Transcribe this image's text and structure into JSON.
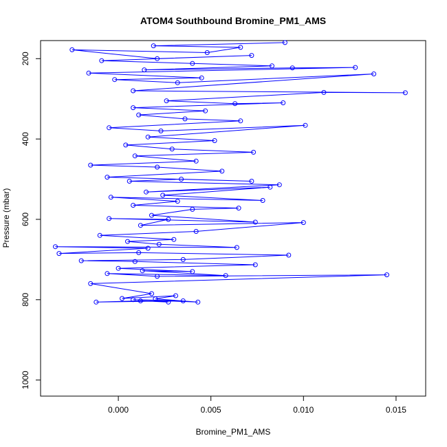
{
  "chart_data": {
    "type": "line",
    "title": "ATOM4 Southbound Bromine_PM1_AMS",
    "xlabel": "Bromine_PM1_AMS",
    "ylabel": "Pressure (mbar)",
    "xlim": [
      -0.0042,
      0.0166
    ],
    "ylim": [
      1040,
      155
    ],
    "y_axis_reversed": true,
    "grid": false,
    "x_ticks": [
      {
        "value": 0.0,
        "label": "0.000"
      },
      {
        "value": 0.005,
        "label": "0.005"
      },
      {
        "value": 0.01,
        "label": "0.010"
      },
      {
        "value": 0.015,
        "label": "0.015"
      }
    ],
    "y_ticks": [
      {
        "value": 200,
        "label": "200"
      },
      {
        "value": 400,
        "label": "400"
      },
      {
        "value": 600,
        "label": "600"
      },
      {
        "value": 800,
        "label": "800"
      },
      {
        "value": 1000,
        "label": "1000"
      }
    ],
    "series_color": "#0000ff",
    "marker": "open-circle",
    "series": [
      {
        "values": [
          [
            0.0027,
            806
          ],
          [
            0.0012,
            803
          ],
          [
            -0.0012,
            806
          ],
          [
            0.0035,
            803
          ],
          [
            0.0008,
            800
          ],
          [
            0.0043,
            806
          ],
          [
            0.002,
            798
          ],
          [
            0.0031,
            790
          ],
          [
            0.0002,
            797
          ],
          [
            0.0018,
            785
          ],
          [
            -0.0015,
            760
          ],
          [
            0.0145,
            738
          ],
          [
            0.0021,
            742
          ],
          [
            -0.0006,
            735
          ],
          [
            0.0058,
            740
          ],
          [
            0.0013,
            728
          ],
          [
            0.004,
            730
          ],
          [
            0.0,
            722
          ],
          [
            0.0074,
            713
          ],
          [
            0.0009,
            705
          ],
          [
            -0.002,
            703
          ],
          [
            0.0035,
            700
          ],
          [
            0.0092,
            689
          ],
          [
            0.0011,
            683
          ],
          [
            -0.0032,
            685
          ],
          [
            0.0016,
            672
          ],
          [
            -0.0034,
            668
          ],
          [
            0.0064,
            670
          ],
          [
            0.0022,
            662
          ],
          [
            0.0005,
            655
          ],
          [
            0.003,
            650
          ],
          [
            -0.001,
            640
          ],
          [
            0.0042,
            630
          ],
          [
            0.01,
            608
          ],
          [
            0.0012,
            615
          ],
          [
            0.0027,
            600
          ],
          [
            -0.0005,
            598
          ],
          [
            0.0074,
            607
          ],
          [
            0.0018,
            590
          ],
          [
            0.004,
            575
          ],
          [
            0.0065,
            572
          ],
          [
            0.0008,
            565
          ],
          [
            0.0032,
            555
          ],
          [
            -0.0004,
            545
          ],
          [
            0.0078,
            553
          ],
          [
            0.0024,
            540
          ],
          [
            0.0082,
            520
          ],
          [
            0.0015,
            532
          ],
          [
            0.0087,
            514
          ],
          [
            0.0006,
            505
          ],
          [
            0.0034,
            500
          ],
          [
            0.0072,
            505
          ],
          [
            -0.0006,
            495
          ],
          [
            0.0056,
            480
          ],
          [
            0.0021,
            470
          ],
          [
            -0.0015,
            465
          ],
          [
            0.0042,
            455
          ],
          [
            0.0009,
            442
          ],
          [
            0.0073,
            433
          ],
          [
            0.0029,
            425
          ],
          [
            0.0004,
            415
          ],
          [
            0.0052,
            404
          ],
          [
            0.0016,
            395
          ],
          [
            0.0101,
            366
          ],
          [
            0.0023,
            380
          ],
          [
            -0.0005,
            372
          ],
          [
            0.0066,
            355
          ],
          [
            0.0036,
            350
          ],
          [
            0.0011,
            340
          ],
          [
            0.0047,
            330
          ],
          [
            0.0008,
            322
          ],
          [
            0.0089,
            310
          ],
          [
            0.0063,
            312
          ],
          [
            0.0026,
            305
          ],
          [
            0.0111,
            284
          ],
          [
            0.0155,
            285
          ],
          [
            0.0008,
            280
          ],
          [
            0.0138,
            238
          ],
          [
            0.0032,
            260
          ],
          [
            -0.0002,
            252
          ],
          [
            0.0045,
            248
          ],
          [
            -0.0016,
            236
          ],
          [
            0.0128,
            222
          ],
          [
            0.0094,
            223
          ],
          [
            0.0014,
            228
          ],
          [
            0.0083,
            218
          ],
          [
            0.004,
            212
          ],
          [
            -0.0009,
            205
          ],
          [
            0.0072,
            192
          ],
          [
            0.0021,
            200
          ],
          [
            -0.0025,
            178
          ],
          [
            0.0048,
            185
          ],
          [
            0.0066,
            172
          ],
          [
            0.0019,
            168
          ],
          [
            0.009,
            160
          ]
        ]
      }
    ]
  }
}
